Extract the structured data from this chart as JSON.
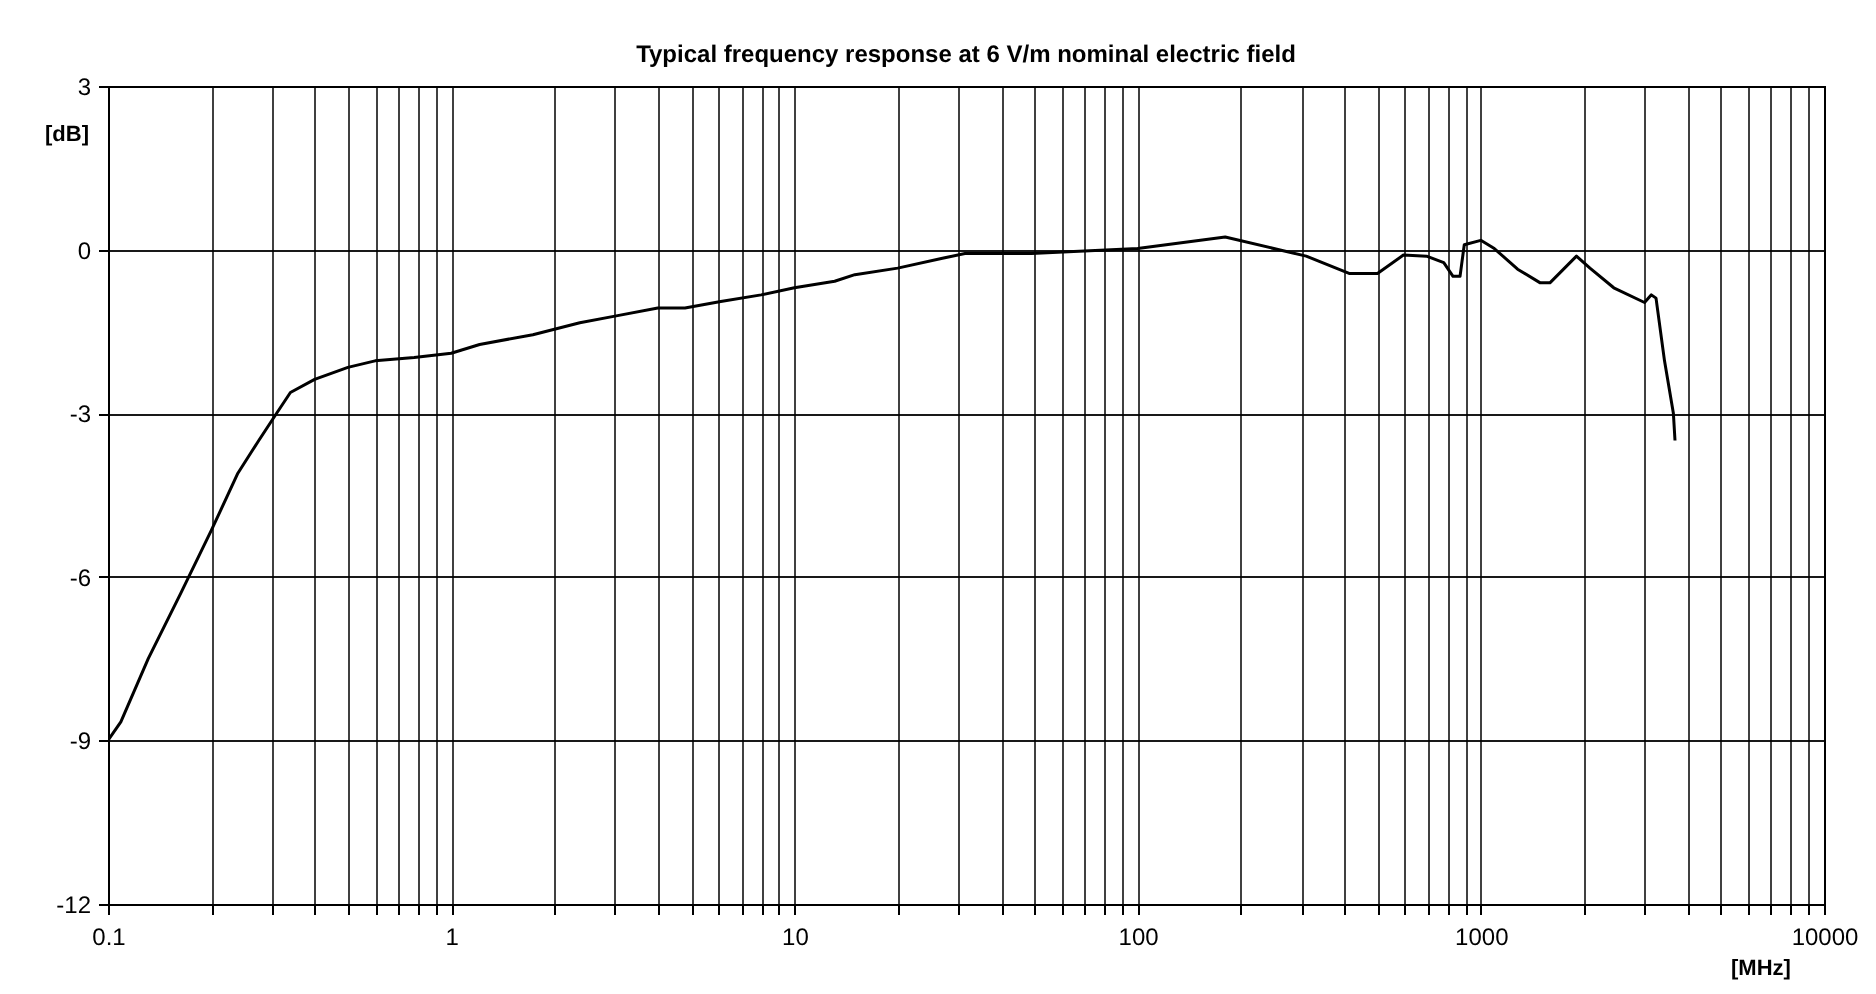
{
  "chart_data": {
    "type": "line",
    "title": "Typical frequency response at 6 V/m nominal electric field",
    "xlabel": "[MHz]",
    "ylabel": "[dB]",
    "log": "x",
    "grid": true,
    "line_style": "solid",
    "xlim": [
      0.1,
      10000
    ],
    "ylim": [
      -12,
      3
    ],
    "xticks": [
      0.1,
      {
        "value": 0.2,
        "label": null
      },
      {
        "value": 0.3,
        "label": null
      },
      {
        "value": 0.4,
        "label": null
      },
      {
        "value": 0.5,
        "label": null
      },
      {
        "value": 0.6,
        "label": null
      },
      {
        "value": 0.7,
        "label": null
      },
      {
        "value": 0.8,
        "label": null
      },
      {
        "value": 0.9,
        "label": null
      },
      1,
      {
        "value": 2,
        "label": null
      },
      {
        "value": 3,
        "label": null
      },
      {
        "value": 4,
        "label": null
      },
      {
        "value": 5,
        "label": null
      },
      {
        "value": 6,
        "label": null
      },
      {
        "value": 7,
        "label": null
      },
      {
        "value": 8,
        "label": null
      },
      {
        "value": 9,
        "label": null
      },
      10,
      {
        "value": 20,
        "label": null
      },
      {
        "value": 30,
        "label": null
      },
      {
        "value": 40,
        "label": null
      },
      {
        "value": 50,
        "label": null
      },
      {
        "value": 60,
        "label": null
      },
      {
        "value": 70,
        "label": null
      },
      {
        "value": 80,
        "label": null
      },
      {
        "value": 90,
        "label": null
      },
      100,
      {
        "value": 200,
        "label": null
      },
      {
        "value": 300,
        "label": null
      },
      {
        "value": 400,
        "label": null
      },
      {
        "value": 500,
        "label": null
      },
      {
        "value": 600,
        "label": null
      },
      {
        "value": 700,
        "label": null
      },
      {
        "value": 800,
        "label": null
      },
      {
        "value": 900,
        "label": null
      },
      1000,
      {
        "value": 2000,
        "label": null
      },
      {
        "value": 3000,
        "label": null
      },
      {
        "value": 4000,
        "label": null
      },
      {
        "value": 5000,
        "label": null
      },
      {
        "value": 6000,
        "label": null
      },
      {
        "value": 7000,
        "label": null
      },
      {
        "value": 8000,
        "label": null
      },
      {
        "value": 9000,
        "label": null
      },
      10000
    ],
    "yticks": [
      -12,
      -9,
      -6,
      -3,
      0,
      3
    ],
    "x": [
      0.1,
      0.109,
      0.131,
      0.163,
      0.2,
      0.239,
      0.275,
      0.31,
      0.34,
      0.4,
      0.5,
      0.6,
      0.78,
      1,
      1.21,
      1.73,
      2.37,
      3,
      4,
      4.8,
      6.1,
      8,
      10,
      13.1,
      15,
      20,
      27,
      31.4,
      49,
      100,
      180,
      310,
      415,
      500,
      595,
      695,
      780,
      830,
      870,
      895,
      1000,
      1095,
      1280,
      1490,
      1590,
      1900,
      2080,
      2440,
      3000,
      3140,
      3240,
      3430,
      3640,
      3680
    ],
    "series": [
      {
        "color": "#000000",
        "values": [
          -9,
          -8.66,
          -7.5,
          -6.3,
          -5.15,
          -4.1,
          -3.5,
          -3,
          -2.62,
          -2.38,
          -2.16,
          -2.04,
          -1.98,
          -1.9,
          -1.74,
          -1.56,
          -1.34,
          -1.22,
          -1.07,
          -1.07,
          -0.95,
          -0.83,
          -0.7,
          -0.58,
          -0.46,
          -0.34,
          -0.16,
          -0.07,
          -0.07,
          0.02,
          0.23,
          -0.12,
          -0.44,
          -0.44,
          -0.1,
          -0.12,
          -0.24,
          -0.49,
          -0.49,
          0.09,
          0.17,
          0.02,
          -0.36,
          -0.61,
          -0.61,
          -0.12,
          -0.34,
          -0.7,
          -0.97,
          -0.83,
          -0.89,
          -2.04,
          -3,
          -3.5
        ]
      }
    ]
  }
}
